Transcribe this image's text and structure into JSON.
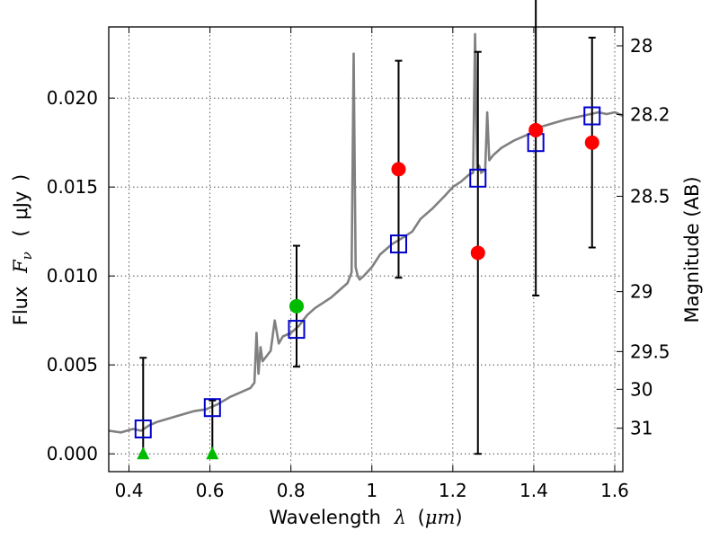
{
  "chart_data": {
    "type": "scatter",
    "title": "",
    "xlabel": {
      "prefix": "Wavelength",
      "symbol": "λ",
      "unit_open": "(",
      "unit": "μm",
      "unit_close": ")"
    },
    "ylabel_left": {
      "prefix": "Flux",
      "symbol": "F",
      "subscript": "ν",
      "unit_open": "(",
      "unit": "μJy",
      "unit_close": ")"
    },
    "ylabel_right": "Magnitude (AB)",
    "xlim": [
      0.35,
      1.62
    ],
    "ylim": [
      -0.001,
      0.024
    ],
    "grid": true,
    "x_ticks": [
      {
        "value": 0.4,
        "label": "0.4"
      },
      {
        "value": 0.6,
        "label": "0.6"
      },
      {
        "value": 0.8,
        "label": "0.8"
      },
      {
        "value": 1.0,
        "label": "1"
      },
      {
        "value": 1.2,
        "label": "1.2"
      },
      {
        "value": 1.4,
        "label": "1.4"
      },
      {
        "value": 1.6,
        "label": "1.6"
      }
    ],
    "y_ticks": [
      {
        "value": 0.0,
        "label": "0.000"
      },
      {
        "value": 0.005,
        "label": "0.005"
      },
      {
        "value": 0.01,
        "label": "0.010"
      },
      {
        "value": 0.015,
        "label": "0.015"
      },
      {
        "value": 0.02,
        "label": "0.020"
      }
    ],
    "right_ticks": [
      {
        "label": "28",
        "flux": 0.02294
      },
      {
        "label": "28.2",
        "flux": 0.01908
      },
      {
        "label": "28.5",
        "flux": 0.01448
      },
      {
        "label": "29",
        "flux": 0.00912
      },
      {
        "label": "29.5",
        "flux": 0.00575
      },
      {
        "label": "30",
        "flux": 0.00363
      },
      {
        "label": "31",
        "flux": 0.00144
      }
    ],
    "series": [
      {
        "kind": "model_spectrum",
        "color": "#808080",
        "x": [
          0.35,
          0.38,
          0.41,
          0.43,
          0.45,
          0.47,
          0.5,
          0.53,
          0.56,
          0.59,
          0.62,
          0.65,
          0.68,
          0.7,
          0.71,
          0.715,
          0.72,
          0.725,
          0.73,
          0.74,
          0.75,
          0.76,
          0.77,
          0.78,
          0.8,
          0.82,
          0.84,
          0.86,
          0.88,
          0.9,
          0.92,
          0.94,
          0.95,
          0.955,
          0.96,
          0.965,
          0.97,
          0.98,
          1.0,
          1.02,
          1.05,
          1.08,
          1.1,
          1.12,
          1.15,
          1.18,
          1.2,
          1.22,
          1.24,
          1.25,
          1.255,
          1.26,
          1.265,
          1.27,
          1.28,
          1.285,
          1.29,
          1.3,
          1.32,
          1.35,
          1.38,
          1.4,
          1.42,
          1.45,
          1.48,
          1.5,
          1.52,
          1.54,
          1.56,
          1.58,
          1.6,
          1.62
        ],
        "y": [
          0.0013,
          0.0012,
          0.0014,
          0.0013,
          0.0016,
          0.0018,
          0.002,
          0.0022,
          0.0024,
          0.0025,
          0.0028,
          0.0032,
          0.0035,
          0.0037,
          0.004,
          0.0068,
          0.0045,
          0.006,
          0.0052,
          0.0055,
          0.0058,
          0.0075,
          0.0062,
          0.0066,
          0.0068,
          0.0072,
          0.0078,
          0.0082,
          0.0085,
          0.0088,
          0.0092,
          0.0096,
          0.0102,
          0.0225,
          0.0105,
          0.01,
          0.0098,
          0.01,
          0.0105,
          0.0112,
          0.0118,
          0.0122,
          0.0125,
          0.0132,
          0.0138,
          0.0145,
          0.015,
          0.0153,
          0.0157,
          0.0158,
          0.0236,
          0.016,
          0.0162,
          0.0158,
          0.016,
          0.0192,
          0.0165,
          0.0168,
          0.0172,
          0.0176,
          0.0179,
          0.0181,
          0.0184,
          0.0186,
          0.0188,
          0.0189,
          0.019,
          0.0191,
          0.0192,
          0.0191,
          0.0192,
          0.019
        ]
      },
      {
        "kind": "model_photometry",
        "marker": "open-square",
        "color": "#0000cc",
        "x": [
          0.435,
          0.606,
          0.814,
          1.066,
          1.262,
          1.405,
          1.544
        ],
        "y": [
          0.0014,
          0.0026,
          0.007,
          0.0118,
          0.0155,
          0.0175,
          0.019
        ]
      },
      {
        "kind": "observed_detections",
        "marker": "circle",
        "color": "#ff0000",
        "x": [
          1.066,
          1.262,
          1.405,
          1.544
        ],
        "y": [
          0.016,
          0.0113,
          0.0182,
          0.0175
        ],
        "yerr_low": [
          0.0061,
          0.0113,
          0.0093,
          0.0059
        ],
        "yerr_high": [
          0.0061,
          0.0113,
          0.0093,
          0.0059
        ]
      },
      {
        "kind": "observed_detection_green",
        "marker": "circle",
        "color": "#00bb00",
        "x": [
          0.814
        ],
        "y": [
          0.0083
        ],
        "yerr_low": [
          0.0034
        ],
        "yerr_high": [
          0.0034
        ]
      },
      {
        "kind": "upper_limits",
        "marker": "triangle",
        "color": "#00bb00",
        "x": [
          0.435,
          0.606
        ],
        "y": [
          0.0,
          0.0
        ],
        "yerr_high": [
          0.0054,
          0.003
        ]
      }
    ]
  }
}
